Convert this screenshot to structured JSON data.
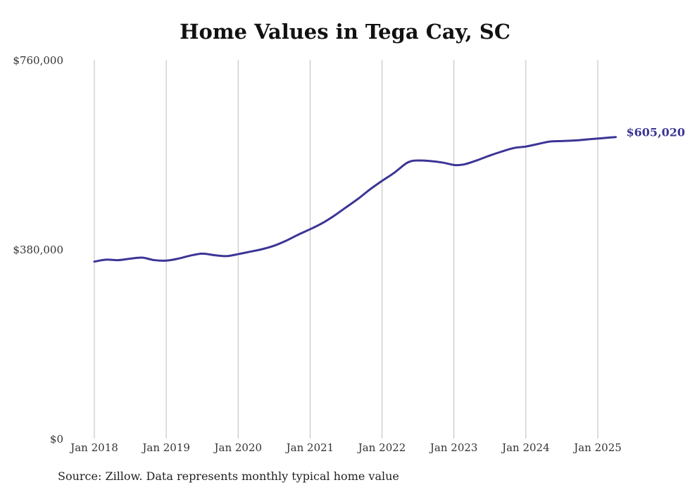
{
  "chart_data": {
    "type": "line",
    "title": "Home Values in Tega Cay, SC",
    "xlabel": "",
    "ylabel": "",
    "source": "Source: Zillow. Data represents monthly typical home value",
    "y_ticks": [
      {
        "value": 760000,
        "label": "$760,000"
      },
      {
        "value": 380000,
        "label": "$380,000"
      },
      {
        "value": 0,
        "label": "$0"
      }
    ],
    "ylim": [
      0,
      760000
    ],
    "x_ticks": [
      {
        "value": "2018-01",
        "label": "Jan 2018"
      },
      {
        "value": "2019-01",
        "label": "Jan 2019"
      },
      {
        "value": "2020-01",
        "label": "Jan 2020"
      },
      {
        "value": "2021-01",
        "label": "Jan 2021"
      },
      {
        "value": "2022-01",
        "label": "Jan 2022"
      },
      {
        "value": "2023-01",
        "label": "Jan 2023"
      },
      {
        "value": "2024-01",
        "label": "Jan 2024"
      },
      {
        "value": "2025-01",
        "label": "Jan 2025"
      }
    ],
    "xlim": [
      "2018-01",
      "2025-04"
    ],
    "grid": "vertical",
    "line_color": "#3b3596",
    "end_label": "$605,020",
    "series": [
      {
        "x": [
          "2018-01",
          "2018-03",
          "2018-05",
          "2018-07",
          "2018-09",
          "2018-11",
          "2019-01",
          "2019-03",
          "2019-05",
          "2019-07",
          "2019-09",
          "2019-11",
          "2020-01",
          "2020-03",
          "2020-05",
          "2020-07",
          "2020-09",
          "2020-11",
          "2021-01",
          "2021-03",
          "2021-05",
          "2021-07",
          "2021-09",
          "2021-11",
          "2022-01",
          "2022-03",
          "2022-05",
          "2022-06",
          "2022-07",
          "2022-09",
          "2022-11",
          "2023-01",
          "2023-02",
          "2023-03",
          "2023-05",
          "2023-07",
          "2023-09",
          "2023-11",
          "2024-01",
          "2024-03",
          "2024-05",
          "2024-07",
          "2024-09",
          "2024-11",
          "2025-01",
          "2025-03",
          "2025-04"
        ],
        "values": [
          355000,
          359000,
          358000,
          361000,
          363000,
          358000,
          357000,
          361000,
          367000,
          371000,
          368000,
          366000,
          370000,
          375000,
          380000,
          387000,
          397000,
          409000,
          420000,
          432000,
          447000,
          464000,
          481000,
          500000,
          517000,
          533000,
          552000,
          557000,
          558000,
          557000,
          554000,
          549000,
          549000,
          551000,
          559000,
          568000,
          576000,
          583000,
          586000,
          591000,
          596000,
          597000,
          598000,
          600000,
          602000,
          604000,
          605020
        ]
      }
    ]
  }
}
